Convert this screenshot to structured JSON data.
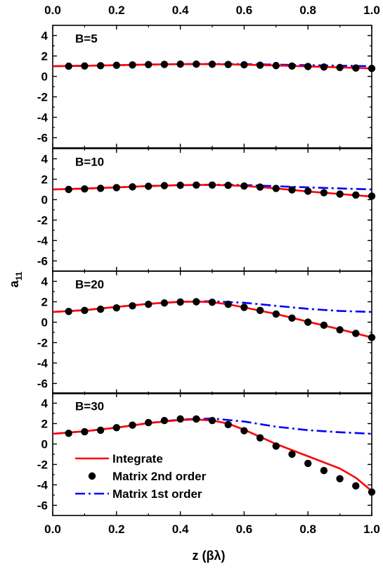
{
  "chart_data": [
    {
      "type": "line",
      "panel_label": "B=5",
      "xlim": [
        0.0,
        1.0
      ],
      "ylim": [
        -7,
        5
      ],
      "x_ticks": [
        "0.0",
        "0.2",
        "0.4",
        "0.6",
        "0.8",
        "1.0"
      ],
      "y_ticks": [
        "4",
        "2",
        "0",
        "-2",
        "-4",
        "-6"
      ],
      "series": [
        {
          "name": "Integrate",
          "style": "solid",
          "color": "#ff0000",
          "x": [
            0.0,
            0.1,
            0.2,
            0.3,
            0.4,
            0.5,
            0.6,
            0.7,
            0.8,
            0.9,
            1.0
          ],
          "y": [
            1.0,
            1.04,
            1.1,
            1.16,
            1.2,
            1.2,
            1.15,
            1.07,
            0.98,
            0.88,
            0.78
          ]
        },
        {
          "name": "Matrix 2nd order",
          "style": "markers",
          "color": "#000000",
          "x": [
            0.05,
            0.1,
            0.15,
            0.2,
            0.25,
            0.3,
            0.35,
            0.4,
            0.45,
            0.5,
            0.55,
            0.6,
            0.65,
            0.7,
            0.75,
            0.8,
            0.85,
            0.9,
            0.95,
            1.0
          ],
          "y": [
            1.0,
            1.02,
            1.05,
            1.09,
            1.12,
            1.16,
            1.18,
            1.2,
            1.2,
            1.19,
            1.17,
            1.14,
            1.1,
            1.06,
            1.01,
            0.97,
            0.92,
            0.87,
            0.82,
            0.78
          ]
        },
        {
          "name": "Matrix 1st order",
          "style": "dashdot",
          "color": "#0000ff",
          "x": [
            0.0,
            0.1,
            0.2,
            0.3,
            0.4,
            0.5,
            0.6,
            0.7,
            0.8,
            0.9,
            1.0
          ],
          "y": [
            1.0,
            1.04,
            1.1,
            1.16,
            1.2,
            1.22,
            1.2,
            1.15,
            1.1,
            1.05,
            1.0
          ]
        }
      ]
    },
    {
      "type": "line",
      "panel_label": "B=10",
      "xlim": [
        0.0,
        1.0
      ],
      "ylim": [
        -7,
        5
      ],
      "x_ticks": [
        "0.0",
        "0.2",
        "0.4",
        "0.6",
        "0.8",
        "1.0"
      ],
      "y_ticks": [
        "4",
        "2",
        "0",
        "-2",
        "-4",
        "-6"
      ],
      "series": [
        {
          "name": "Integrate",
          "style": "solid",
          "color": "#ff0000",
          "x": [
            0.0,
            0.1,
            0.2,
            0.3,
            0.4,
            0.5,
            0.6,
            0.7,
            0.8,
            0.9,
            1.0
          ],
          "y": [
            1.0,
            1.08,
            1.2,
            1.33,
            1.42,
            1.45,
            1.35,
            1.1,
            0.8,
            0.55,
            0.3
          ]
        },
        {
          "name": "Matrix 2nd order",
          "style": "markers",
          "color": "#000000",
          "x": [
            0.05,
            0.1,
            0.15,
            0.2,
            0.25,
            0.3,
            0.35,
            0.4,
            0.45,
            0.5,
            0.55,
            0.6,
            0.65,
            0.7,
            0.75,
            0.8,
            0.85,
            0.9,
            0.95,
            1.0
          ],
          "y": [
            1.0,
            1.05,
            1.11,
            1.18,
            1.25,
            1.31,
            1.37,
            1.41,
            1.43,
            1.43,
            1.4,
            1.33,
            1.23,
            1.1,
            0.96,
            0.83,
            0.68,
            0.55,
            0.45,
            0.35
          ]
        },
        {
          "name": "Matrix 1st order",
          "style": "dashdot",
          "color": "#0000ff",
          "x": [
            0.0,
            0.1,
            0.2,
            0.3,
            0.4,
            0.5,
            0.6,
            0.7,
            0.8,
            0.9,
            1.0
          ],
          "y": [
            1.0,
            1.08,
            1.2,
            1.33,
            1.42,
            1.47,
            1.43,
            1.32,
            1.2,
            1.1,
            1.0
          ]
        }
      ]
    },
    {
      "type": "line",
      "panel_label": "B=20",
      "xlim": [
        0.0,
        1.0
      ],
      "ylim": [
        -7,
        5
      ],
      "x_ticks": [
        "0.0",
        "0.2",
        "0.4",
        "0.6",
        "0.8",
        "1.0"
      ],
      "y_ticks": [
        "4",
        "2",
        "0",
        "-2",
        "-4",
        "-6"
      ],
      "series": [
        {
          "name": "Integrate",
          "style": "solid",
          "color": "#ff0000",
          "x": [
            0.0,
            0.1,
            0.2,
            0.3,
            0.4,
            0.45,
            0.5,
            0.55,
            0.6,
            0.7,
            0.8,
            0.9,
            1.0
          ],
          "y": [
            1.0,
            1.18,
            1.5,
            1.8,
            2.0,
            2.02,
            1.95,
            1.75,
            1.45,
            0.8,
            0.05,
            -0.7,
            -1.5
          ]
        },
        {
          "name": "Matrix 2nd order",
          "style": "markers",
          "color": "#000000",
          "x": [
            0.05,
            0.1,
            0.15,
            0.2,
            0.25,
            0.3,
            0.35,
            0.4,
            0.45,
            0.5,
            0.55,
            0.6,
            0.65,
            0.7,
            0.75,
            0.8,
            0.85,
            0.9,
            0.95,
            1.0
          ],
          "y": [
            1.05,
            1.15,
            1.27,
            1.4,
            1.6,
            1.75,
            1.88,
            1.97,
            2.0,
            1.95,
            1.75,
            1.45,
            1.15,
            0.8,
            0.4,
            0.0,
            -0.3,
            -0.75,
            -1.1,
            -1.5
          ]
        },
        {
          "name": "Matrix 1st order",
          "style": "dashdot",
          "color": "#0000ff",
          "x": [
            0.0,
            0.1,
            0.2,
            0.3,
            0.4,
            0.5,
            0.6,
            0.7,
            0.8,
            0.9,
            1.0
          ],
          "y": [
            1.0,
            1.18,
            1.5,
            1.8,
            2.0,
            2.05,
            1.9,
            1.6,
            1.3,
            1.1,
            1.0
          ]
        }
      ]
    },
    {
      "type": "line",
      "panel_label": "B=30",
      "xlim": [
        0.0,
        1.0
      ],
      "ylim": [
        -7,
        5
      ],
      "x_ticks": [
        "0.0",
        "0.2",
        "0.4",
        "0.6",
        "0.8",
        "1.0"
      ],
      "y_ticks": [
        "4",
        "2",
        "0",
        "-2",
        "-4",
        "-6"
      ],
      "xlabel": "z (βλ)",
      "series": [
        {
          "name": "Integrate",
          "style": "solid",
          "color": "#ff0000",
          "x": [
            0.0,
            0.1,
            0.2,
            0.3,
            0.4,
            0.45,
            0.5,
            0.55,
            0.6,
            0.7,
            0.8,
            0.9,
            0.95,
            1.0
          ],
          "y": [
            1.0,
            1.25,
            1.6,
            2.05,
            2.35,
            2.4,
            2.3,
            2.0,
            1.4,
            0.0,
            -1.2,
            -2.4,
            -3.3,
            -4.6
          ]
        },
        {
          "name": "Matrix 2nd order",
          "style": "markers",
          "color": "#000000",
          "x": [
            0.05,
            0.1,
            0.15,
            0.2,
            0.25,
            0.3,
            0.35,
            0.4,
            0.45,
            0.5,
            0.55,
            0.6,
            0.65,
            0.7,
            0.75,
            0.8,
            0.85,
            0.9,
            0.95,
            1.0
          ],
          "y": [
            1.05,
            1.2,
            1.35,
            1.6,
            1.85,
            2.1,
            2.3,
            2.45,
            2.45,
            2.3,
            1.9,
            1.3,
            0.6,
            -0.2,
            -1.0,
            -1.9,
            -2.6,
            -3.4,
            -4.1,
            -4.7
          ]
        },
        {
          "name": "Matrix 1st order",
          "style": "dashdot",
          "color": "#0000ff",
          "x": [
            0.0,
            0.1,
            0.2,
            0.3,
            0.4,
            0.5,
            0.6,
            0.7,
            0.8,
            0.9,
            1.0
          ],
          "y": [
            1.0,
            1.25,
            1.6,
            2.05,
            2.4,
            2.5,
            2.2,
            1.7,
            1.35,
            1.15,
            1.0
          ]
        }
      ]
    }
  ],
  "y_axis_label": "a",
  "y_axis_label_subscript": "11",
  "legend": {
    "location": "lower-left",
    "panel": "B=30",
    "entries": [
      {
        "label": "Integrate",
        "style": "solid",
        "color": "#ff0000"
      },
      {
        "label": "Matrix 2nd order",
        "style": "markers",
        "color": "#000000"
      },
      {
        "label": "Matrix 1st order",
        "style": "dashdot",
        "color": "#0000ff"
      }
    ]
  }
}
